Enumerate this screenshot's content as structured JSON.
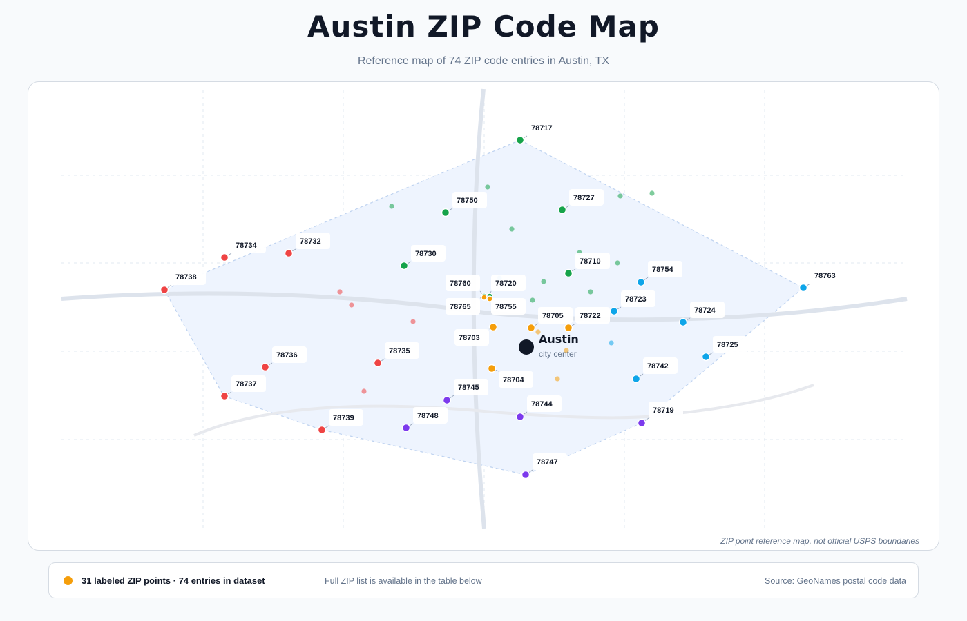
{
  "header": {
    "title": "Austin ZIP Code Map",
    "subtitle": "Reference map of 74 ZIP code entries in Austin, TX"
  },
  "map": {
    "city_name": "Austin",
    "city_sublabel": "city center",
    "note": "ZIP point reference map, not official USPS boundaries"
  },
  "footer": {
    "count_text": "31 labeled ZIP points · 74 entries in dataset",
    "hint": "Full ZIP list is available in the table below",
    "source": "Source: GeoNames postal code data"
  },
  "colors": {
    "north": "#16a34a",
    "east": "#0ea5e9",
    "south": "#7c3aed",
    "west": "#ef4444",
    "central": "#f59e0b",
    "area_fill": "#eef4fe",
    "road": "#dde3ec"
  },
  "labeled_zips": [
    {
      "zip": "78717",
      "region": "north"
    },
    {
      "zip": "78750",
      "region": "north"
    },
    {
      "zip": "78727",
      "region": "north"
    },
    {
      "zip": "78730",
      "region": "north"
    },
    {
      "zip": "78710",
      "region": "north"
    },
    {
      "zip": "78760",
      "region": "north"
    },
    {
      "zip": "78720",
      "region": "north"
    },
    {
      "zip": "78734",
      "region": "west"
    },
    {
      "zip": "78732",
      "region": "west"
    },
    {
      "zip": "78738",
      "region": "west"
    },
    {
      "zip": "78736",
      "region": "west"
    },
    {
      "zip": "78735",
      "region": "west"
    },
    {
      "zip": "78737",
      "region": "west"
    },
    {
      "zip": "78739",
      "region": "west"
    },
    {
      "zip": "78754",
      "region": "east"
    },
    {
      "zip": "78763",
      "region": "east"
    },
    {
      "zip": "78723",
      "region": "east"
    },
    {
      "zip": "78724",
      "region": "east"
    },
    {
      "zip": "78725",
      "region": "east"
    },
    {
      "zip": "78742",
      "region": "east"
    },
    {
      "zip": "78765",
      "region": "central"
    },
    {
      "zip": "78755",
      "region": "central"
    },
    {
      "zip": "78705",
      "region": "central"
    },
    {
      "zip": "78722",
      "region": "central"
    },
    {
      "zip": "78703",
      "region": "central"
    },
    {
      "zip": "78704",
      "region": "central"
    },
    {
      "zip": "78745",
      "region": "south"
    },
    {
      "zip": "78744",
      "region": "south"
    },
    {
      "zip": "78748",
      "region": "south"
    },
    {
      "zip": "78719",
      "region": "south"
    },
    {
      "zip": "78747",
      "region": "south"
    }
  ]
}
